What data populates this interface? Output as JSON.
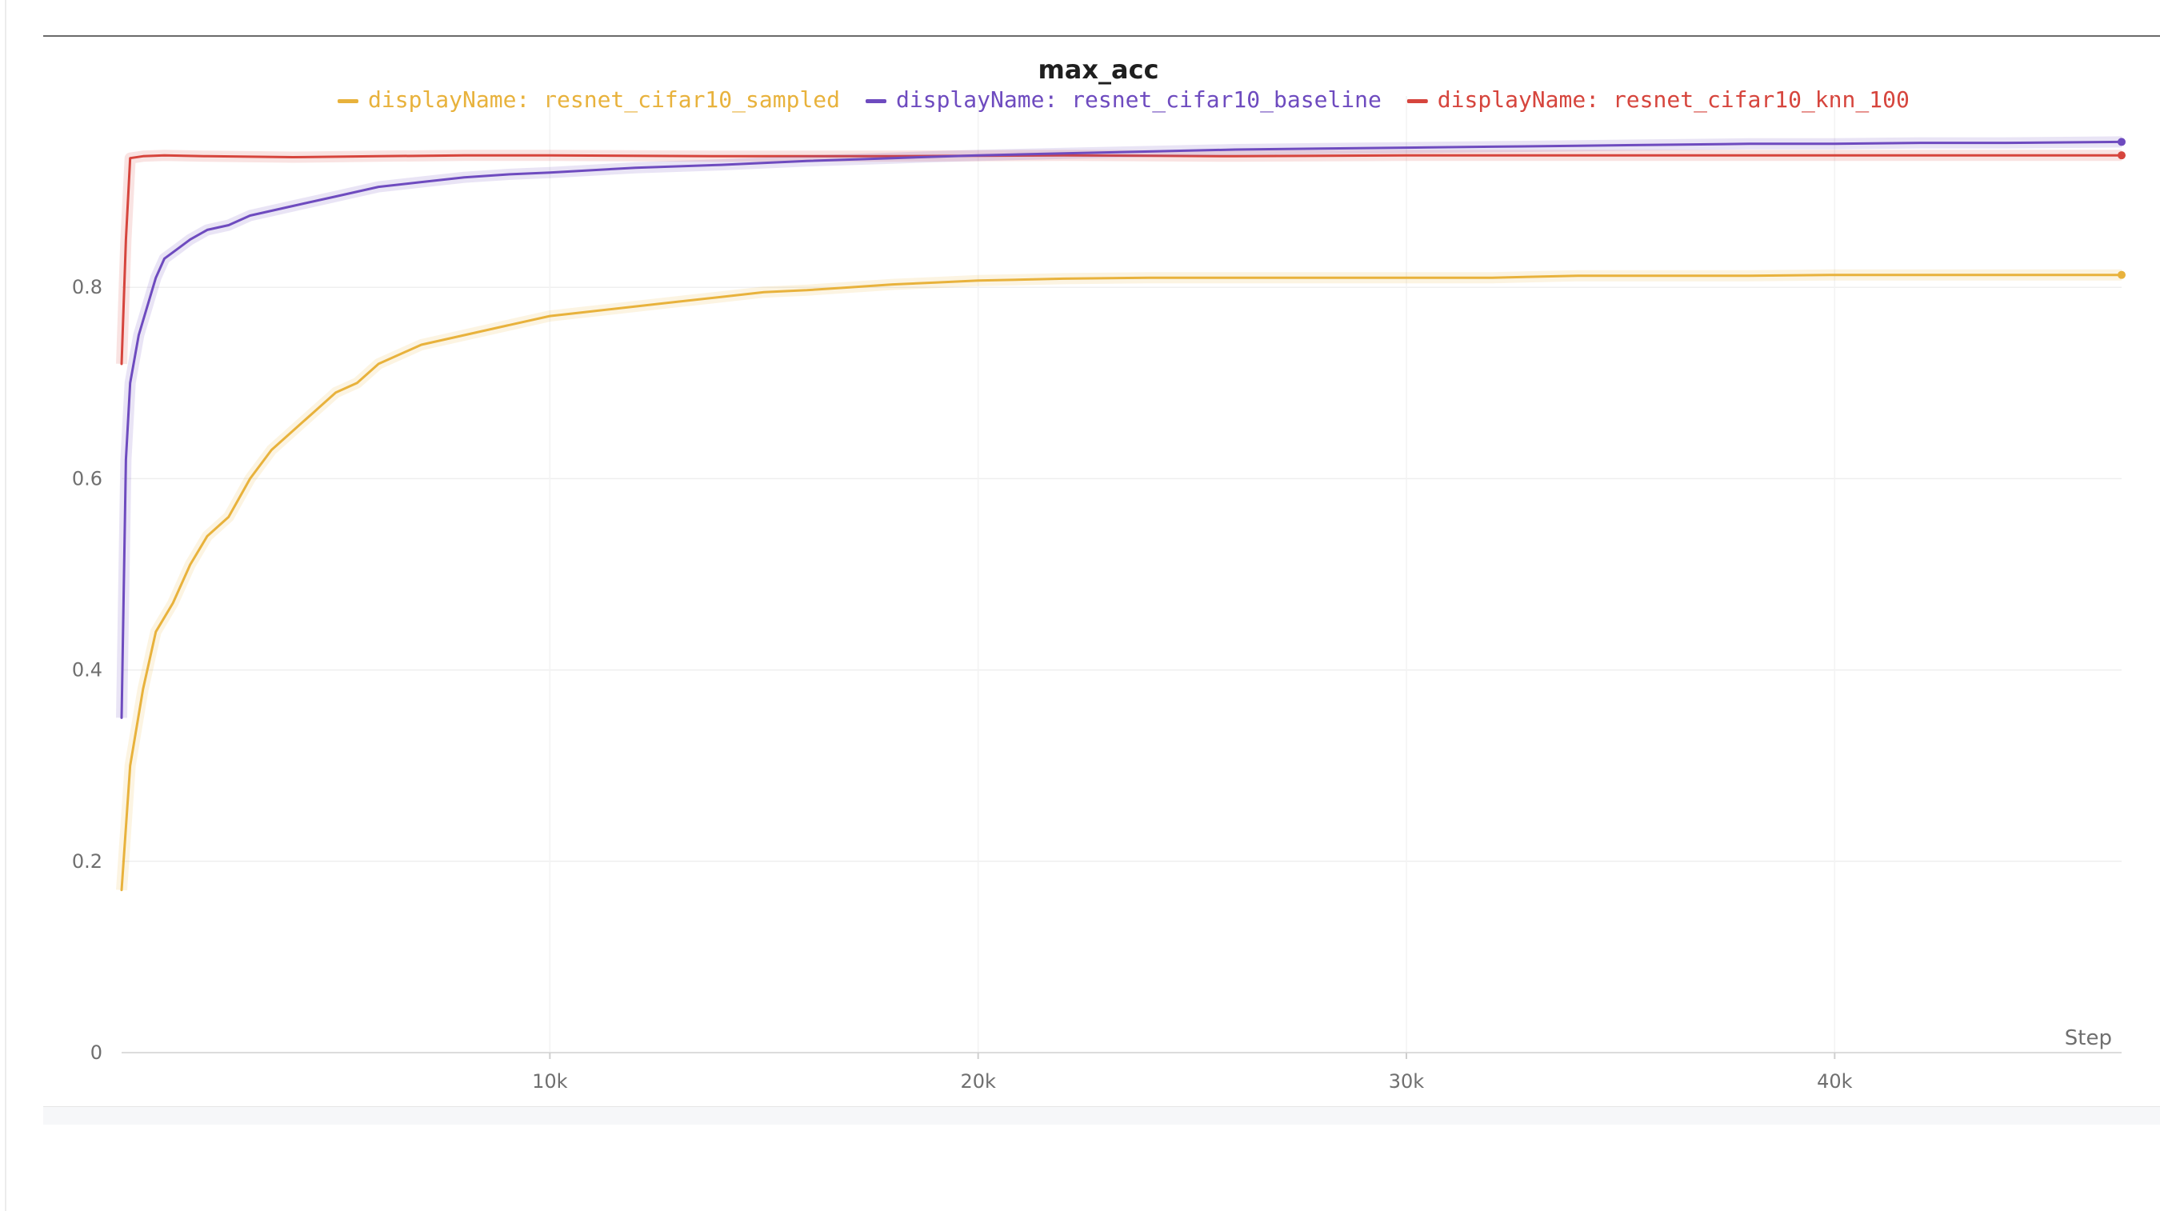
{
  "chart_data": {
    "type": "line",
    "title": "max_acc",
    "xlabel": "Step",
    "ylabel": "",
    "xlim": [
      0,
      46700
    ],
    "ylim": [
      0,
      1
    ],
    "x_ticks": [
      {
        "value": 10000,
        "label": "10k"
      },
      {
        "value": 20000,
        "label": "20k"
      },
      {
        "value": 30000,
        "label": "30k"
      },
      {
        "value": 40000,
        "label": "40k"
      }
    ],
    "y_ticks": [
      {
        "value": 0,
        "label": "0"
      },
      {
        "value": 0.2,
        "label": "0.2"
      },
      {
        "value": 0.4,
        "label": "0.4"
      },
      {
        "value": 0.6,
        "label": "0.6"
      },
      {
        "value": 0.8,
        "label": "0.8"
      }
    ],
    "grid": true,
    "legend_position": "top-center",
    "series": [
      {
        "name": "displayName: resnet_cifar10_sampled",
        "color": "#e8b23c",
        "x": [
          0,
          200,
          500,
          800,
          1200,
          1600,
          2000,
          2500,
          3000,
          3500,
          4000,
          4500,
          5000,
          5500,
          6000,
          7000,
          8000,
          9000,
          10000,
          11000,
          12000,
          13000,
          14000,
          15000,
          16000,
          17000,
          18000,
          19000,
          20000,
          22000,
          24000,
          26000,
          28000,
          30000,
          32000,
          34000,
          36000,
          38000,
          40000,
          42000,
          44000,
          46700
        ],
        "values": [
          0.17,
          0.3,
          0.38,
          0.44,
          0.47,
          0.51,
          0.54,
          0.56,
          0.6,
          0.63,
          0.65,
          0.67,
          0.69,
          0.7,
          0.72,
          0.74,
          0.75,
          0.76,
          0.77,
          0.775,
          0.78,
          0.785,
          0.79,
          0.795,
          0.797,
          0.8,
          0.803,
          0.805,
          0.807,
          0.809,
          0.81,
          0.81,
          0.81,
          0.81,
          0.81,
          0.812,
          0.812,
          0.812,
          0.813,
          0.813,
          0.813,
          0.813
        ]
      },
      {
        "name": "displayName: resnet_cifar10_baseline",
        "color": "#6e4bbf",
        "x": [
          0,
          100,
          200,
          400,
          600,
          800,
          1000,
          1300,
          1600,
          2000,
          2500,
          3000,
          3500,
          4000,
          5000,
          6000,
          7000,
          8000,
          9000,
          10000,
          12000,
          14000,
          16000,
          18000,
          20000,
          22000,
          24000,
          26000,
          28000,
          30000,
          32000,
          34000,
          36000,
          38000,
          40000,
          42000,
          44000,
          46700
        ],
        "values": [
          0.35,
          0.62,
          0.7,
          0.75,
          0.78,
          0.81,
          0.83,
          0.84,
          0.85,
          0.86,
          0.865,
          0.875,
          0.88,
          0.885,
          0.895,
          0.905,
          0.91,
          0.915,
          0.918,
          0.92,
          0.925,
          0.928,
          0.932,
          0.935,
          0.938,
          0.94,
          0.942,
          0.944,
          0.945,
          0.946,
          0.947,
          0.948,
          0.949,
          0.95,
          0.95,
          0.951,
          0.951,
          0.952
        ]
      },
      {
        "name": "displayName: resnet_cifar10_knn_100",
        "color": "#d6453d",
        "x": [
          0,
          100,
          200,
          500,
          1000,
          2000,
          4000,
          6000,
          8000,
          10000,
          14000,
          18000,
          22000,
          26000,
          30000,
          34000,
          38000,
          42000,
          46700
        ],
        "values": [
          0.72,
          0.85,
          0.935,
          0.937,
          0.938,
          0.937,
          0.936,
          0.937,
          0.938,
          0.938,
          0.937,
          0.937,
          0.938,
          0.937,
          0.938,
          0.938,
          0.938,
          0.938,
          0.938
        ]
      }
    ]
  }
}
